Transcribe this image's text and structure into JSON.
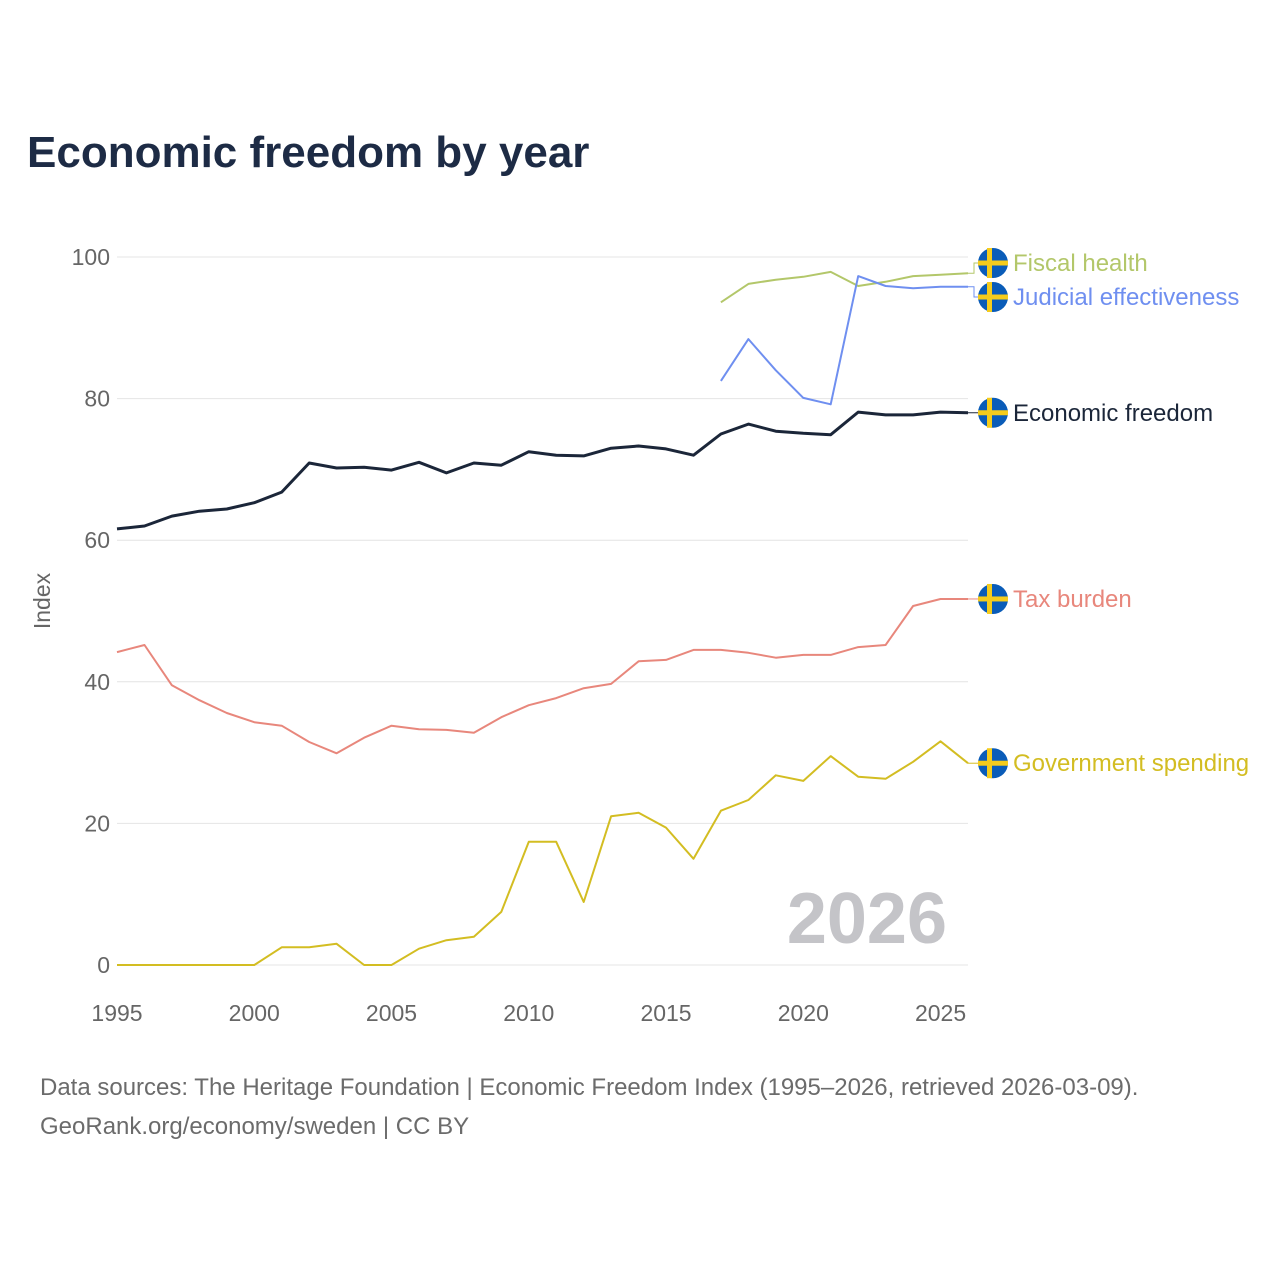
{
  "title": "Economic freedom by year",
  "footer": {
    "line1": "Data sources: The Heritage Foundation | Economic Freedom Index (1995–2026, retrieved 2026-03-09).",
    "line2": "GeoRank.org/economy/sweden | CC BY"
  },
  "chart_data": {
    "type": "line",
    "title": "Economic freedom by year",
    "xlabel": "",
    "ylabel": "Index",
    "xlim": [
      1995,
      2026
    ],
    "ylim": [
      0,
      100
    ],
    "xticks": [
      "1995",
      "2000",
      "2005",
      "2010",
      "2015",
      "2020",
      "2025"
    ],
    "yticks": [
      "0",
      "20",
      "40",
      "60",
      "80",
      "100"
    ],
    "grid": true,
    "year_watermark": "2026",
    "legend_placement": "right end labels with flag icons",
    "series": [
      {
        "name": "Fiscal health",
        "color": "#b3c76a",
        "start": 2017,
        "values": [
          93.6,
          96.2,
          96.8,
          97.2,
          97.9,
          95.9,
          96.5,
          97.3,
          97.5,
          97.7
        ]
      },
      {
        "name": "Judicial effectiveness",
        "color": "#6f8ff0",
        "start": 2017,
        "values": [
          82.5,
          88.4,
          84.0,
          80.1,
          79.2,
          97.3,
          95.9,
          95.6,
          95.8,
          95.8
        ]
      },
      {
        "name": "Economic freedom",
        "color": "#1b2639",
        "start": 1995,
        "values": [
          61.6,
          62.0,
          63.4,
          64.1,
          64.4,
          65.3,
          66.8,
          70.9,
          70.2,
          70.3,
          69.9,
          71.0,
          69.5,
          70.9,
          70.6,
          72.5,
          72.0,
          71.9,
          73.0,
          73.3,
          72.9,
          72.0,
          75.0,
          76.4,
          75.4,
          75.1,
          74.9,
          78.1,
          77.7,
          77.7,
          78.1,
          78.0
        ]
      },
      {
        "name": "Tax burden",
        "color": "#e8877c",
        "start": 1995,
        "values": [
          44.2,
          45.2,
          39.5,
          37.4,
          35.6,
          34.3,
          33.8,
          31.5,
          29.9,
          32.1,
          33.8,
          33.3,
          33.2,
          32.8,
          35.0,
          36.7,
          37.7,
          39.1,
          39.7,
          42.9,
          43.1,
          44.5,
          44.5,
          44.1,
          43.4,
          43.8,
          43.8,
          44.9,
          45.2,
          50.7,
          51.7,
          51.7
        ]
      },
      {
        "name": "Government spending",
        "color": "#d3bd22",
        "start": 1995,
        "values": [
          0,
          0,
          0,
          0,
          0,
          0,
          2.5,
          2.5,
          3.0,
          0,
          0,
          2.3,
          3.5,
          4.0,
          7.5,
          17.4,
          17.4,
          8.9,
          21.0,
          21.5,
          19.4,
          15.0,
          21.8,
          23.3,
          26.8,
          26.0,
          29.5,
          26.6,
          26.3,
          28.7,
          31.6,
          28.5
        ]
      }
    ]
  }
}
